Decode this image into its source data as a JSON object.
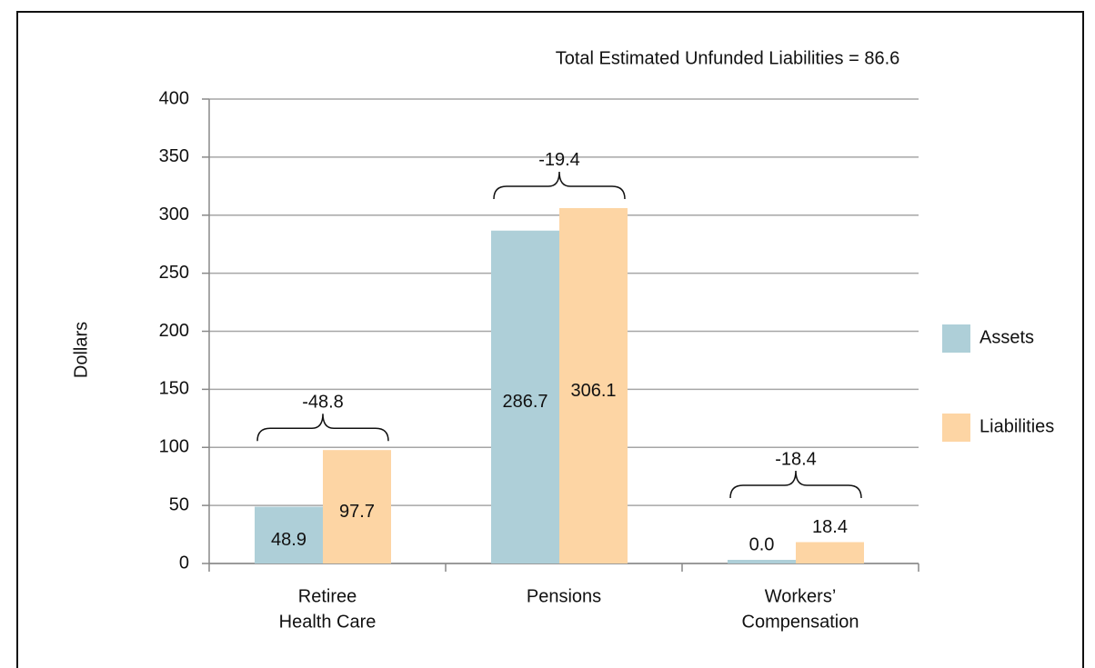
{
  "chart_data": {
    "type": "bar",
    "title": "Total Estimated Unfunded Liabilities = 86.6",
    "y_label": "Dollars",
    "categories": [
      [
        "Retiree",
        "Health Care"
      ],
      [
        "Pensions"
      ],
      [
        "Workers’",
        "Compensation"
      ]
    ],
    "series": [
      {
        "name": "Assets",
        "color": "#aecfd8",
        "values": [
          48.9,
          286.7,
          0
        ],
        "value_labels": [
          "48.9",
          "286.7",
          "0.0"
        ]
      },
      {
        "name": "Liabilities",
        "color": "#fdd5a4",
        "values": [
          97.7,
          306.1,
          18.4
        ],
        "value_labels": [
          "97.7",
          "306.1",
          "18.4"
        ]
      }
    ],
    "annotations": [
      "-48.8",
      "-19.4",
      "-18.4"
    ],
    "ylim": [
      0,
      400
    ],
    "yticks": [
      0,
      50,
      100,
      150,
      200,
      250,
      300,
      350,
      400
    ],
    "grid": true,
    "legend": "right"
  }
}
